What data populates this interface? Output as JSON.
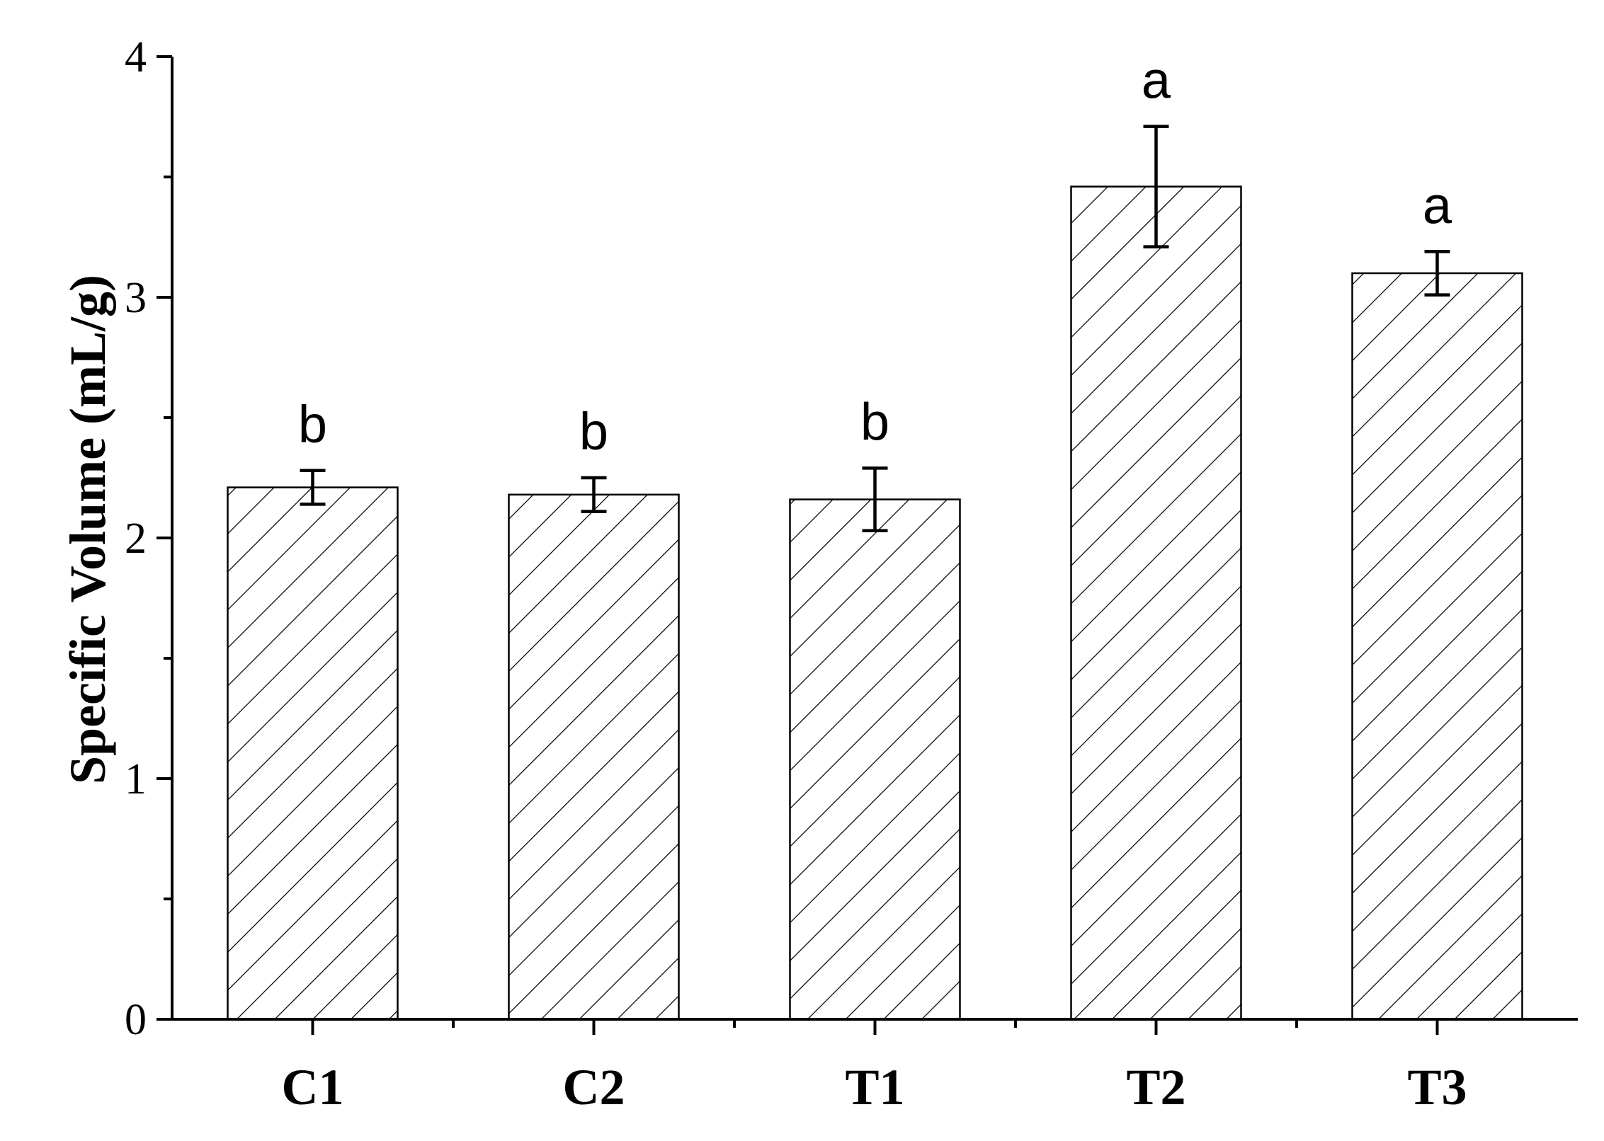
{
  "chart_data": {
    "type": "bar",
    "title": "",
    "xlabel": "",
    "ylabel": "Specific Volume (mL/g)",
    "ylim": [
      0,
      4
    ],
    "yticks": [
      0,
      1,
      2,
      3,
      4
    ],
    "yticks_labels": [
      "0",
      "1",
      "2",
      "3",
      "4"
    ],
    "minor_ticks": true,
    "grid": false,
    "legend": "none",
    "categories": [
      "C1",
      "C2",
      "T1",
      "T2",
      "T3"
    ],
    "values": [
      2.21,
      2.18,
      2.16,
      3.46,
      3.1
    ],
    "errors": [
      0.07,
      0.07,
      0.13,
      0.25,
      0.09
    ],
    "significance_labels": [
      "b",
      "b",
      "b",
      "a",
      "a"
    ],
    "fill_pattern": "diagonal-hatch",
    "colors": {
      "bar_fill": "#ffffff",
      "hatch": "#000000",
      "axis": "#000000"
    }
  }
}
